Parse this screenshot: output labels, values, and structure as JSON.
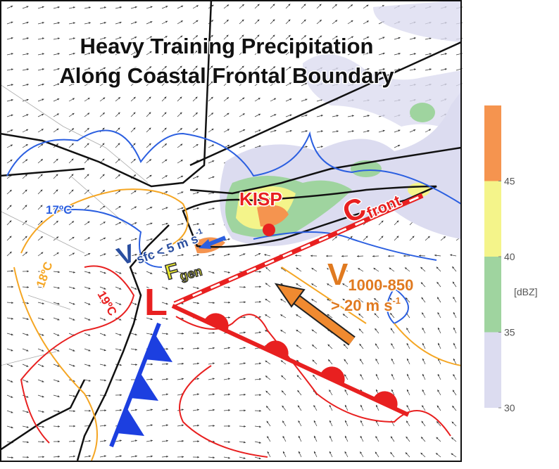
{
  "title": {
    "line1": "Heavy Training Precipitation",
    "line2": "Along Coastal Frontal Boundary"
  },
  "labels": {
    "isotherm_17": "17ºC",
    "isotherm_18": "18ºC",
    "isotherm_19": "19ºC",
    "station": "KISP",
    "front": {
      "main": "C",
      "sub": "front"
    },
    "surface_wind": {
      "main": "V",
      "sub": "sfc",
      "text": "< 5 m s",
      "sup": "-1"
    },
    "frontogenesis": {
      "main": "F",
      "sub": "gen"
    },
    "low": "L",
    "low_level_wind": {
      "main": "V",
      "sub": "1000-850",
      "text": "> 20 m s",
      "sup": "-1"
    }
  },
  "colorbar": {
    "label": "[dBZ]",
    "range": [
      30,
      50
    ],
    "ticks": [
      30,
      35,
      40,
      45
    ],
    "segments": [
      {
        "from": 30,
        "to": 35,
        "color": "#dcdcf0"
      },
      {
        "from": 35,
        "to": 40,
        "color": "#9fd49f"
      },
      {
        "from": 40,
        "to": 45,
        "color": "#f4f48a"
      },
      {
        "from": 45,
        "to": 50,
        "color": "#f5944f"
      }
    ]
  }
}
